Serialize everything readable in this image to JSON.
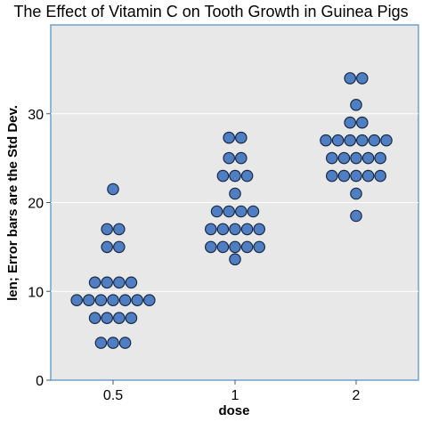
{
  "chart_data": {
    "type": "scatter",
    "style": "dot-plot",
    "title": "The Effect of Vitamin C on Tooth Growth in Guinea Pigs",
    "xlabel": "dose",
    "ylabel": "len; Error bars are the Std Dev.",
    "categories": [
      "0.5",
      "1",
      "2"
    ],
    "ylim": [
      0,
      40
    ],
    "yticks": [
      0,
      10,
      20,
      30
    ],
    "grid": true,
    "colors": {
      "panel": "#e8e8e8",
      "border": "#6fa0d0",
      "grid": "#ffffff",
      "point": "#4f7fc2",
      "point_edge": "#1a2a44"
    },
    "series": [
      {
        "category": "0.5",
        "values": [
          4.2,
          4.2,
          4.2,
          7,
          7,
          7,
          7,
          9,
          9,
          9,
          9,
          9,
          9,
          9,
          11,
          11,
          11,
          11,
          15,
          15,
          17,
          17,
          21.5
        ]
      },
      {
        "category": "1",
        "values": [
          13.6,
          15,
          15,
          15,
          15,
          15,
          17,
          17,
          17,
          17,
          17,
          19,
          19,
          19,
          19,
          21,
          23,
          23,
          23,
          25,
          25,
          27.3,
          27.3
        ]
      },
      {
        "category": "2",
        "values": [
          18.5,
          21,
          23,
          23,
          23,
          23,
          23,
          25,
          25,
          25,
          25,
          25,
          27,
          27,
          27,
          27,
          27,
          27,
          29,
          29,
          31,
          34,
          34
        ]
      }
    ]
  }
}
